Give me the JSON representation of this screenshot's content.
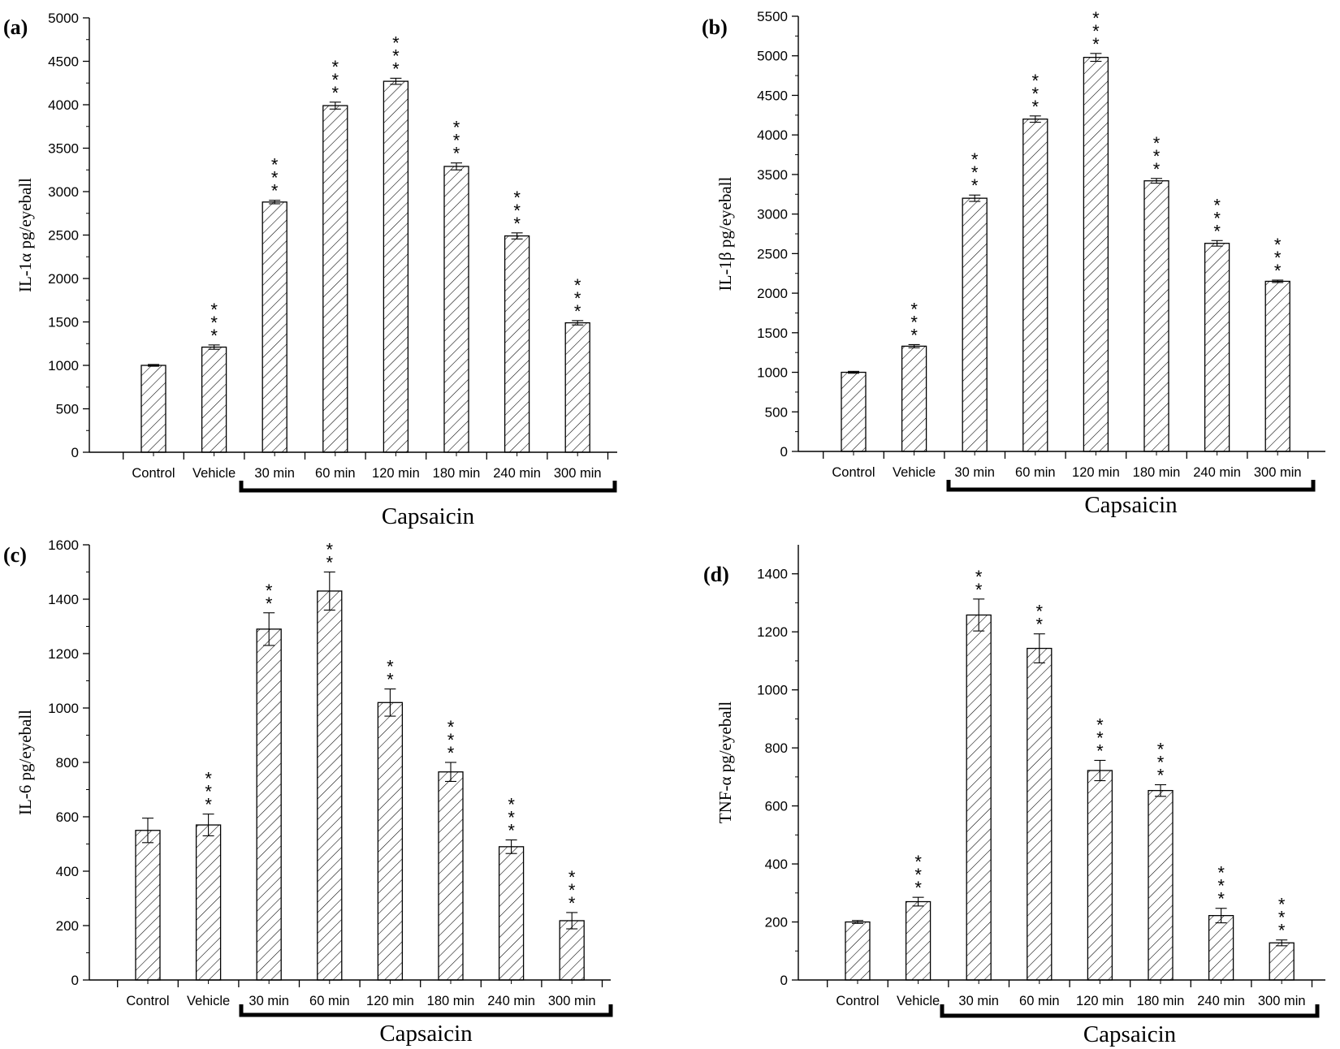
{
  "chart_data": [
    {
      "type": "bar",
      "panel_label": "(a)",
      "ylabel": "IL-1α pg/eyeball",
      "ylim": [
        0,
        5000
      ],
      "yticks": [
        0,
        500,
        1000,
        1500,
        2000,
        2500,
        3000,
        3500,
        4000,
        4500,
        5000
      ],
      "categories": [
        "Control",
        "Vehicle",
        "30 min",
        "60 min",
        "120 min",
        "180 min",
        "240 min",
        "300 min"
      ],
      "values": [
        1000,
        1210,
        2880,
        3990,
        4270,
        3290,
        2490,
        1490
      ],
      "errors": [
        10,
        25,
        20,
        40,
        35,
        40,
        35,
        25
      ],
      "significance": [
        "",
        "***",
        "***",
        "***",
        "***",
        "***",
        "***",
        "***"
      ],
      "group_label": "Capsaicin",
      "bar_fill": "hatched",
      "color": "#000000"
    },
    {
      "type": "bar",
      "panel_label": "(b)",
      "ylabel": "IL-1β pg/eyeball",
      "ylim": [
        0,
        5500
      ],
      "yticks": [
        0,
        500,
        1000,
        1500,
        2000,
        2500,
        3000,
        3500,
        4000,
        4500,
        5000,
        5500
      ],
      "categories": [
        "Control",
        "Vehicle",
        "30 min",
        "60 min",
        "120 min",
        "180 min",
        "240 min",
        "300 min"
      ],
      "values": [
        1000,
        1330,
        3200,
        4200,
        4980,
        3420,
        2630,
        2150
      ],
      "errors": [
        12,
        20,
        40,
        40,
        50,
        30,
        35,
        15
      ],
      "significance": [
        "",
        "***",
        "***",
        "***",
        "***",
        "***",
        "***",
        "***"
      ],
      "group_label": "Capsaicin",
      "bar_fill": "hatched",
      "color": "#000000"
    },
    {
      "type": "bar",
      "panel_label": "(c)",
      "ylabel": "IL-6 pg/eyeball",
      "ylim": [
        0,
        1600
      ],
      "yticks": [
        0,
        200,
        400,
        600,
        800,
        1000,
        1200,
        1400,
        1600
      ],
      "categories": [
        "Control",
        "Vehicle",
        "30 min",
        "60 min",
        "120 min",
        "180 min",
        "240 min",
        "300 min"
      ],
      "values": [
        550,
        570,
        1290,
        1430,
        1020,
        765,
        490,
        218
      ],
      "errors": [
        45,
        40,
        60,
        70,
        50,
        35,
        25,
        30
      ],
      "significance": [
        "",
        "***",
        "**",
        "**",
        "**",
        "***",
        "***",
        "***"
      ],
      "group_label": "Capsaicin",
      "bar_fill": "hatched",
      "color": "#000000"
    },
    {
      "type": "bar",
      "panel_label": "(d)",
      "ylabel": "TNF-α pg/eyeball",
      "ylim": [
        0,
        1500
      ],
      "yticks": [
        0,
        200,
        400,
        600,
        800,
        1000,
        1200,
        1400
      ],
      "categories": [
        "Control",
        "Vehicle",
        "30 min",
        "60 min",
        "120 min",
        "180 min",
        "240 min",
        "300 min"
      ],
      "values": [
        200,
        270,
        1258,
        1143,
        722,
        653,
        222,
        128
      ],
      "errors": [
        5,
        15,
        55,
        50,
        35,
        20,
        25,
        10
      ],
      "significance": [
        "",
        "***",
        "**",
        "**",
        "***",
        "***",
        "***",
        "***"
      ],
      "group_label": "Capsaicin",
      "bar_fill": "hatched",
      "color": "#000000"
    }
  ]
}
